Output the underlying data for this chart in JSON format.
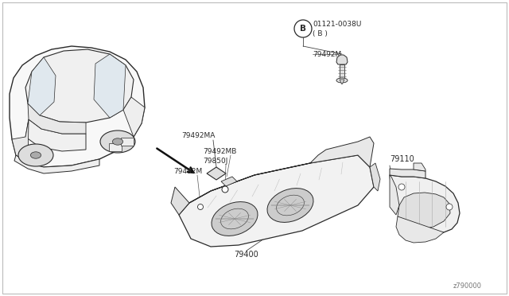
{
  "background_color": "#ffffff",
  "fig_width": 6.4,
  "fig_height": 3.72,
  "dpi": 100,
  "lc": "#2a2a2a",
  "tc": "#2a2a2a",
  "fs": 6.5,
  "labels": {
    "bolt_ref": "B",
    "bolt_part": "01121-0038U",
    "bolt_sub": "( B )",
    "p79492MA": "79492MA",
    "p79492MB": "79492MB",
    "p79492M_l": "79492M",
    "p79492M_r": "79492M",
    "p79850J": "79850J",
    "p79400": "79400",
    "p79110": "79110",
    "code": "z790000"
  }
}
